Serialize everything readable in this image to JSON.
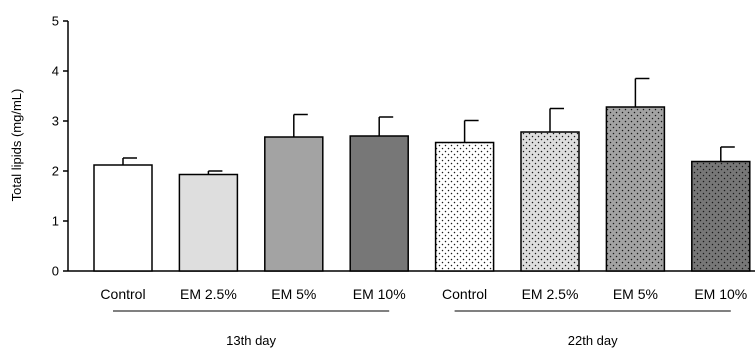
{
  "chart_data": {
    "type": "bar",
    "title": "",
    "xlabel": "",
    "ylabel": "Total lipids (mg/mL)",
    "ylim": [
      0,
      5
    ],
    "yticks": [
      0,
      1,
      2,
      3,
      4,
      5
    ],
    "grid": false,
    "legend": "none",
    "error_bars": true,
    "groups": [
      {
        "label": "13th day",
        "categories": [
          "Control",
          "EM 2.5%",
          "EM 5%",
          "EM 10%"
        ],
        "values": [
          2.12,
          1.93,
          2.68,
          2.7
        ],
        "errors": [
          0.14,
          0.07,
          0.45,
          0.38
        ],
        "fills": [
          "#ffffff",
          "#dedede",
          "#a3a3a3",
          "#777777"
        ],
        "pattern": "solid"
      },
      {
        "label": "22th day",
        "categories": [
          "Control",
          "EM 2.5%",
          "EM 5%",
          "EM 10%"
        ],
        "values": [
          2.57,
          2.78,
          3.28,
          2.19
        ],
        "errors": [
          0.44,
          0.47,
          0.57,
          0.29
        ],
        "fills": [
          "#ffffff",
          "#dedede",
          "#a3a3a3",
          "#777777"
        ],
        "pattern": "dotted"
      }
    ]
  }
}
